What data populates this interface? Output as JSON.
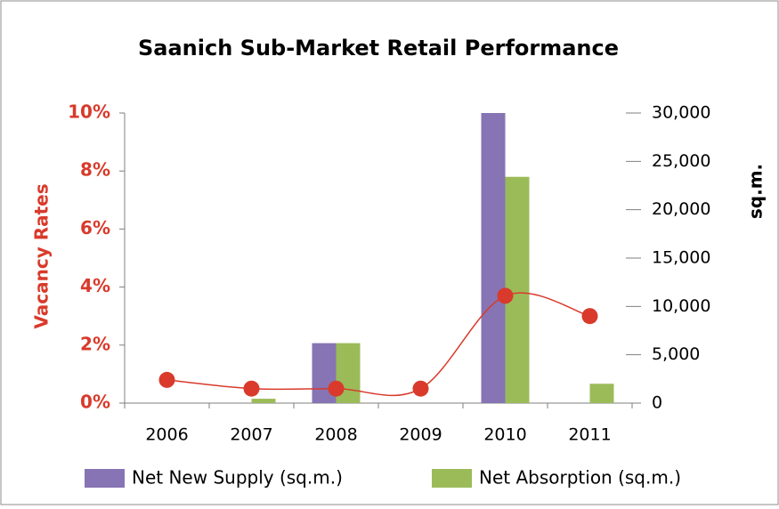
{
  "chart_data": {
    "type": "bar",
    "title": "Saanich Sub-Market Retail Performance",
    "categories": [
      "2006",
      "2007",
      "2008",
      "2009",
      "2010",
      "2011"
    ],
    "series": [
      {
        "name": "Net New Supply (sq.m.)",
        "type": "bar",
        "axis": "y2",
        "color": "#8674b4",
        "values": [
          0,
          0,
          6200,
          0,
          30000,
          0
        ]
      },
      {
        "name": "Net Absorption (sq.m.)",
        "type": "bar",
        "axis": "y2",
        "color": "#9bbb59",
        "values": [
          0,
          450,
          6200,
          0,
          23400,
          2000
        ]
      },
      {
        "name": "Vacancy Rates",
        "type": "line",
        "axis": "y",
        "color": "#d93a2b",
        "values": [
          0.8,
          0.5,
          0.5,
          0.5,
          3.7,
          3.0
        ]
      }
    ],
    "ylabel": "Vacancy Rates",
    "y2label": "sq.m.",
    "ylim": [
      0,
      10
    ],
    "yticks": [
      {
        "value": 0,
        "label": "0%"
      },
      {
        "value": 2,
        "label": "2%"
      },
      {
        "value": 4,
        "label": "4%"
      },
      {
        "value": 6,
        "label": "6%"
      },
      {
        "value": 8,
        "label": "8%"
      },
      {
        "value": 10,
        "label": "10%"
      }
    ],
    "y2lim": [
      0,
      30000
    ],
    "y2ticks": [
      0,
      {
        "value": 5000,
        "label": "5,000"
      },
      {
        "value": 10000,
        "label": "10,000"
      },
      {
        "value": 15000,
        "label": "15,000"
      },
      {
        "value": 20000,
        "label": "20,000"
      },
      {
        "value": 25000,
        "label": "25,000"
      },
      {
        "value": 30000,
        "label": "30,000"
      }
    ],
    "legend": "bottom",
    "grid": false
  }
}
